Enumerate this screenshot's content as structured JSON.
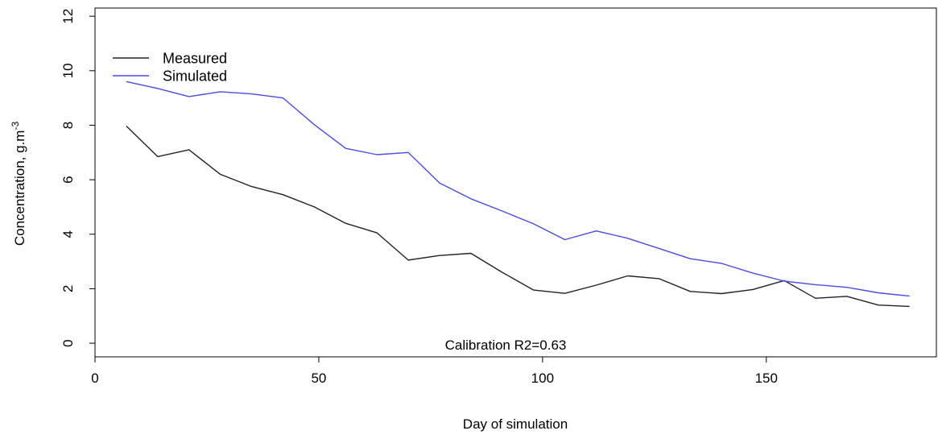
{
  "chart_data": {
    "type": "line",
    "title": "",
    "xlabel": "Day of simulation",
    "ylabel": "Concentration, g.m",
    "ylabel_superscript": "-3",
    "xlim": [
      0,
      188
    ],
    "ylim": [
      -0.5,
      12.3
    ],
    "xticks": [
      0,
      50,
      100,
      150
    ],
    "yticks": [
      0,
      2,
      4,
      6,
      8,
      10,
      12
    ],
    "grid": false,
    "legend_position": "top-left",
    "annotation": "Calibration R2=0.63",
    "series": [
      {
        "name": "Measured",
        "color": "#222222",
        "x": [
          7,
          14,
          21,
          28,
          35,
          42,
          49,
          56,
          63,
          70,
          77,
          84,
          91,
          98,
          105,
          112,
          119,
          126,
          133,
          140,
          147,
          154,
          161,
          168,
          175,
          182
        ],
        "y": [
          7.97,
          6.85,
          7.1,
          6.2,
          5.75,
          5.45,
          5.0,
          4.4,
          4.05,
          3.05,
          3.22,
          3.3,
          2.6,
          1.95,
          1.83,
          2.13,
          2.47,
          2.37,
          1.9,
          1.82,
          1.97,
          2.3,
          1.65,
          1.72,
          1.4,
          1.35
        ]
      },
      {
        "name": "Simulated",
        "color": "#4a4ae6",
        "x": [
          7,
          14,
          21,
          28,
          35,
          42,
          49,
          56,
          63,
          70,
          77,
          84,
          91,
          98,
          105,
          112,
          119,
          126,
          133,
          140,
          147,
          154,
          161,
          168,
          175,
          182
        ],
        "y": [
          9.6,
          9.35,
          9.05,
          9.23,
          9.15,
          9.0,
          8.02,
          7.15,
          6.92,
          7.0,
          5.88,
          5.3,
          4.85,
          4.38,
          3.8,
          4.12,
          3.85,
          3.48,
          3.1,
          2.93,
          2.57,
          2.28,
          2.15,
          2.05,
          1.85,
          1.73
        ]
      }
    ]
  }
}
